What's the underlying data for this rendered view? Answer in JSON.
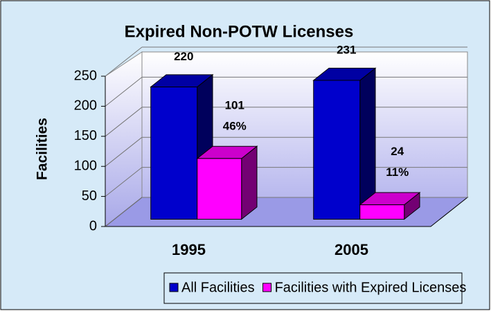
{
  "chart_data": {
    "type": "bar3d",
    "title": "Expired Non-POTW Licenses",
    "y_label": "Facilities",
    "categories": [
      "1995",
      "2005"
    ],
    "series": [
      {
        "name": "All Facilities",
        "color": "#0000cc",
        "values": [
          220,
          231
        ]
      },
      {
        "name": "Facilities with Expired Licenses",
        "color": "#ff00ff",
        "values": [
          101,
          24
        ],
        "percent_labels": [
          "46%",
          "11%"
        ]
      }
    ],
    "ylim": [
      0,
      250
    ],
    "yticks": [
      0,
      50,
      100,
      150,
      200,
      250
    ],
    "grid": true,
    "legend": "bottom"
  }
}
